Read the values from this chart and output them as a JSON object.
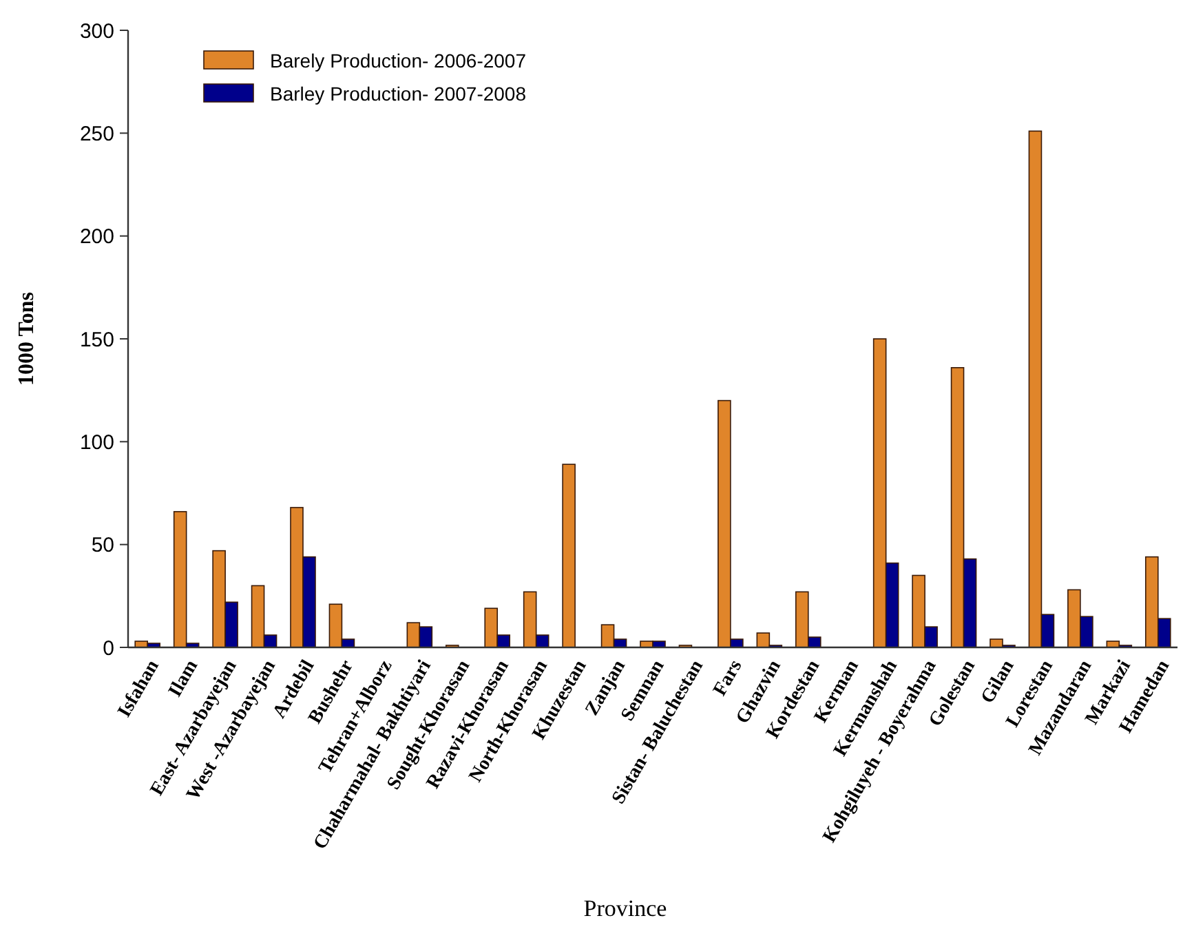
{
  "chart_data": {
    "type": "bar",
    "xlabel": "Province",
    "ylabel": "1000 Tons",
    "categories": [
      "Isfahan",
      "Ilam",
      "East- Azarbayejan",
      "West -Azarbayejan",
      "Ardebil",
      "Bushehr",
      "Tehran+Alborz",
      "Chaharmahal- Bakhtiyari",
      "Sought-Khorasan",
      "Razavi-Khorasan",
      "North-Khorasan",
      "Khuzestan",
      "Zanjan",
      "Semnan",
      "Sistan- Baluchestan",
      "Fars",
      "Ghazvin",
      "Kordestan",
      "Kerman",
      "Kermanshah",
      "Kohgiluyeh - Boyerahma",
      "Golestan",
      "Gilan",
      "Lorestan",
      "Mazandaran",
      "Markazi",
      "Hamedan"
    ],
    "series": [
      {
        "name": "Barely Production- 2006-2007",
        "color": "#e0852a",
        "values": [
          3,
          66,
          47,
          30,
          68,
          21,
          0,
          12,
          1,
          19,
          27,
          89,
          11,
          3,
          1,
          120,
          7,
          27,
          0,
          150,
          35,
          136,
          4,
          251,
          28,
          3,
          44
        ]
      },
      {
        "name": "Barley Production- 2007-2008",
        "color": "#00008b",
        "values": [
          2,
          2,
          22,
          6,
          44,
          4,
          0,
          10,
          0,
          6,
          6,
          0,
          4,
          3,
          0,
          4,
          1,
          5,
          0,
          41,
          10,
          43,
          1,
          16,
          15,
          1,
          14
        ]
      }
    ],
    "ylim": [
      0,
      300
    ],
    "yticks": [
      0,
      50,
      100,
      150,
      200,
      250,
      300
    ],
    "grid": false,
    "legend": "top left"
  }
}
